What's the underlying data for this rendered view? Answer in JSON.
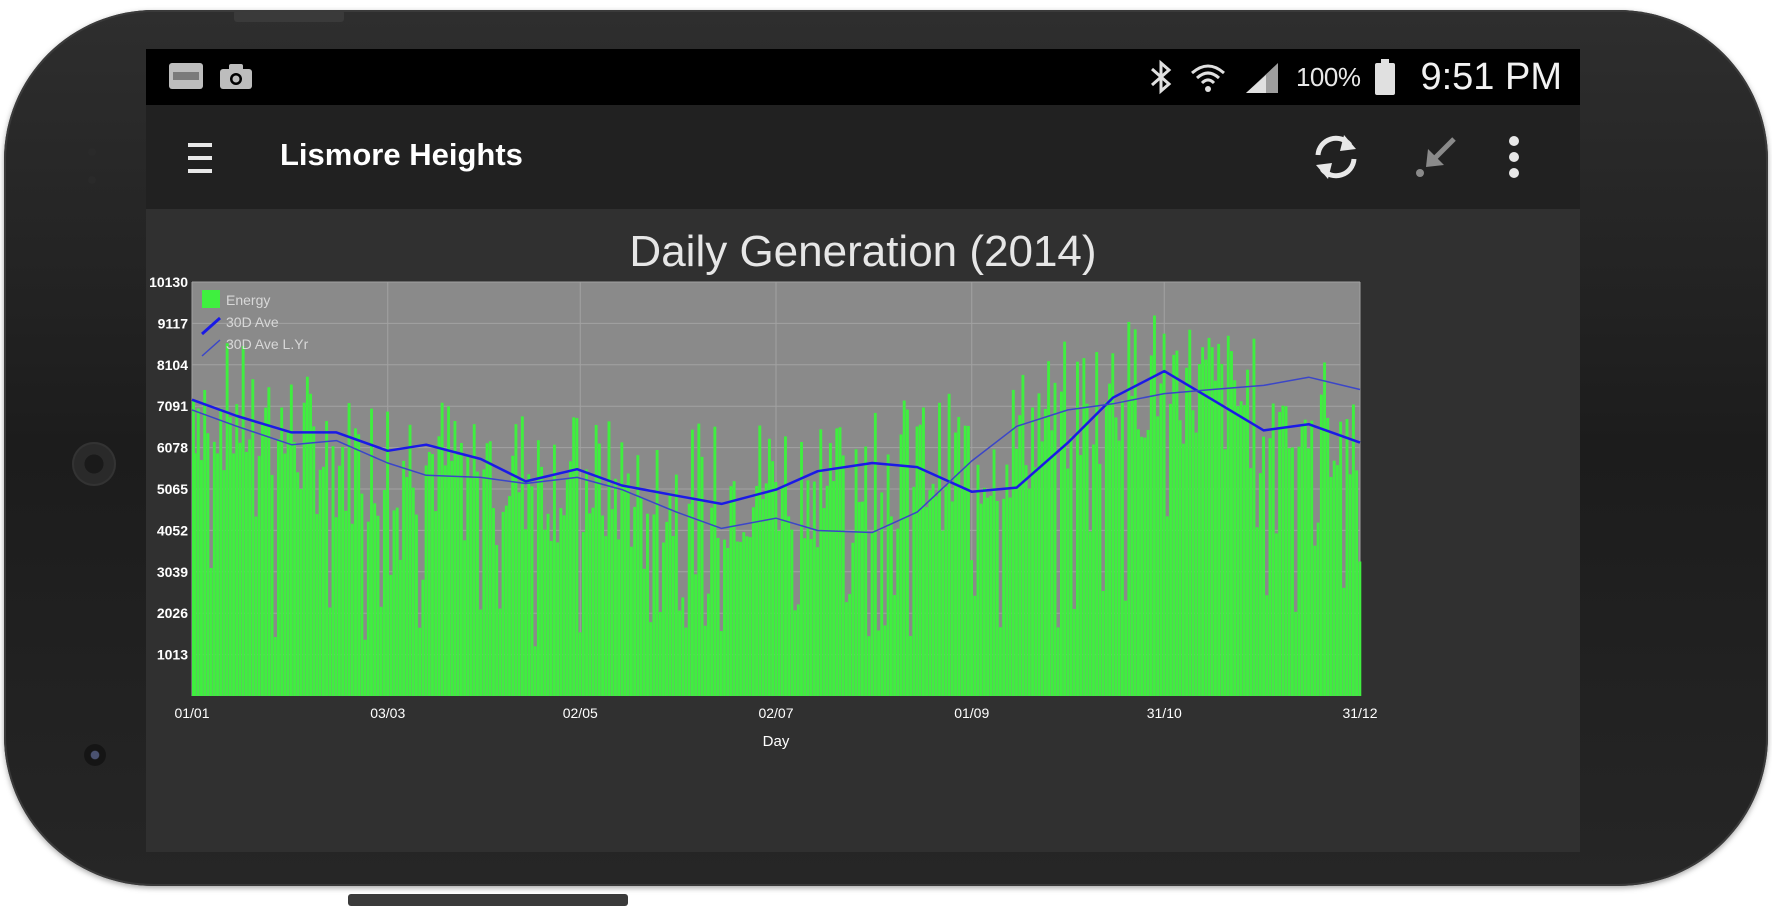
{
  "status_bar": {
    "left_icons": [
      "ebay-notification-icon",
      "camera-notification-icon"
    ],
    "right_icons": [
      "bluetooth-icon",
      "wifi-icon",
      "signal-icon",
      "battery-icon"
    ],
    "battery_percent": "100%",
    "time": "9:51 PM"
  },
  "app_bar": {
    "title": "Lismore Heights",
    "icons": [
      "menu-icon",
      "refresh-icon",
      "collapse-icon",
      "overflow-menu-icon"
    ]
  },
  "colors": {
    "energy_bar": "#3fef3f",
    "ave_30d": "#1a1ae6",
    "ave_30d_last_year": "#3b46c8",
    "plot_background": "#8a8a8a",
    "chart_background": "#303030"
  },
  "chart_data": {
    "type": "bar",
    "title": "Daily Generation (2014)",
    "xlabel": "Day",
    "ylabel": "",
    "x_ticks": [
      "01/01",
      "03/03",
      "02/05",
      "02/07",
      "01/09",
      "31/10",
      "31/12"
    ],
    "y_ticks": [
      "10130",
      "9117",
      "8104",
      "7091",
      "6078",
      "5065",
      "4052",
      "3039",
      "2026",
      "1013"
    ],
    "ylim": [
      0,
      10130
    ],
    "xlim_days": [
      1,
      365
    ],
    "grid": true,
    "legend_position": "top-left",
    "legend": [
      "Energy",
      "30D Ave",
      "30D Ave L.Yr"
    ],
    "series": [
      {
        "name": "Energy",
        "kind": "bar",
        "note": "Daily values approximated from the visual envelope of the chart",
        "envelope": [
          {
            "x": "01/01",
            "y": 7100
          },
          {
            "x": "15/01",
            "y": 6800
          },
          {
            "x": "01/02",
            "y": 6300
          },
          {
            "x": "15/02",
            "y": 5600
          },
          {
            "x": "03/03",
            "y": 5800
          },
          {
            "x": "01/04",
            "y": 5500
          },
          {
            "x": "02/05",
            "y": 5100
          },
          {
            "x": "01/06",
            "y": 4700
          },
          {
            "x": "02/07",
            "y": 5200
          },
          {
            "x": "01/08",
            "y": 5500
          },
          {
            "x": "01/09",
            "y": 5600
          },
          {
            "x": "01/10",
            "y": 6900
          },
          {
            "x": "31/10",
            "y": 7800
          },
          {
            "x": "30/11",
            "y": 6900
          },
          {
            "x": "31/12",
            "y": 6400
          }
        ]
      },
      {
        "name": "30D Ave",
        "kind": "line",
        "points": [
          {
            "x": "01/01",
            "y": 7250
          },
          {
            "x": "15/01",
            "y": 6850
          },
          {
            "x": "01/02",
            "y": 6450
          },
          {
            "x": "15/02",
            "y": 6450
          },
          {
            "x": "03/03",
            "y": 6000
          },
          {
            "x": "15/03",
            "y": 6150
          },
          {
            "x": "01/04",
            "y": 5800
          },
          {
            "x": "15/04",
            "y": 5250
          },
          {
            "x": "01/05",
            "y": 5550
          },
          {
            "x": "15/05",
            "y": 5150
          },
          {
            "x": "01/06",
            "y": 4900
          },
          {
            "x": "15/06",
            "y": 4700
          },
          {
            "x": "02/07",
            "y": 5050
          },
          {
            "x": "15/07",
            "y": 5500
          },
          {
            "x": "01/08",
            "y": 5700
          },
          {
            "x": "15/08",
            "y": 5600
          },
          {
            "x": "01/09",
            "y": 5000
          },
          {
            "x": "15/09",
            "y": 5100
          },
          {
            "x": "01/10",
            "y": 6200
          },
          {
            "x": "15/10",
            "y": 7300
          },
          {
            "x": "31/10",
            "y": 7950
          },
          {
            "x": "15/11",
            "y": 7250
          },
          {
            "x": "01/12",
            "y": 6500
          },
          {
            "x": "15/12",
            "y": 6650
          },
          {
            "x": "31/12",
            "y": 6200
          }
        ]
      },
      {
        "name": "30D Ave L.Yr",
        "kind": "line",
        "points": [
          {
            "x": "01/01",
            "y": 7000
          },
          {
            "x": "15/01",
            "y": 6600
          },
          {
            "x": "01/02",
            "y": 6150
          },
          {
            "x": "15/02",
            "y": 6250
          },
          {
            "x": "03/03",
            "y": 5700
          },
          {
            "x": "15/03",
            "y": 5400
          },
          {
            "x": "01/04",
            "y": 5350
          },
          {
            "x": "15/04",
            "y": 5200
          },
          {
            "x": "01/05",
            "y": 5350
          },
          {
            "x": "15/05",
            "y": 5050
          },
          {
            "x": "01/06",
            "y": 4500
          },
          {
            "x": "15/06",
            "y": 4100
          },
          {
            "x": "02/07",
            "y": 4350
          },
          {
            "x": "15/07",
            "y": 4050
          },
          {
            "x": "01/08",
            "y": 4000
          },
          {
            "x": "15/08",
            "y": 4500
          },
          {
            "x": "01/09",
            "y": 5750
          },
          {
            "x": "15/09",
            "y": 6600
          },
          {
            "x": "01/10",
            "y": 7000
          },
          {
            "x": "15/10",
            "y": 7150
          },
          {
            "x": "31/10",
            "y": 7400
          },
          {
            "x": "15/11",
            "y": 7500
          },
          {
            "x": "01/12",
            "y": 7600
          },
          {
            "x": "15/12",
            "y": 7800
          },
          {
            "x": "31/12",
            "y": 7500
          }
        ]
      }
    ]
  }
}
